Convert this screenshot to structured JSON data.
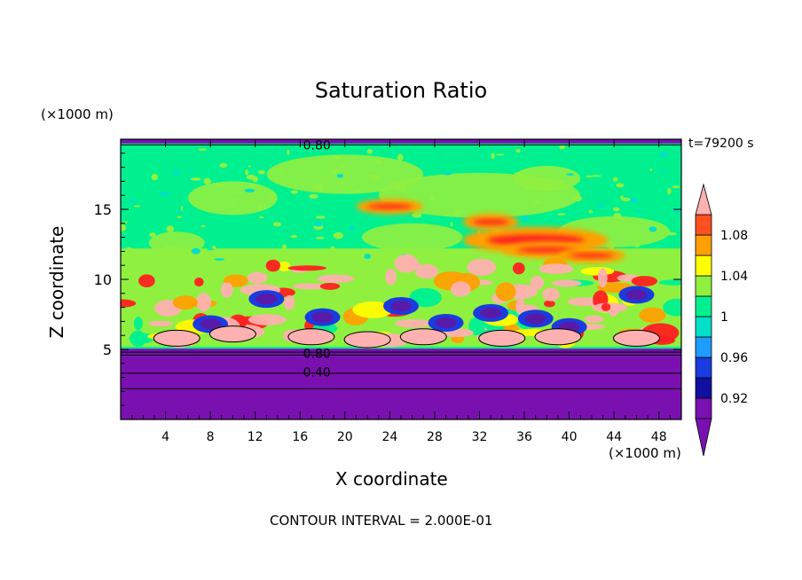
{
  "chart_data": {
    "type": "heatmap",
    "title": "Saturation Ratio",
    "xlabel": "X coordinate",
    "ylabel": "Z coordinate",
    "x_units": "(×1000 m)",
    "z_units": "(×1000 m)",
    "time_label": "t=79200 s",
    "xlim": [
      0,
      50
    ],
    "ylim": [
      0,
      20
    ],
    "x_ticks": [
      4,
      8,
      12,
      16,
      20,
      24,
      28,
      32,
      36,
      40,
      44,
      48
    ],
    "y_ticks": [
      5,
      10,
      15
    ],
    "footer": "CONTOUR INTERVAL = 2.000E-01",
    "contour_labels": [
      {
        "text": "0.80",
        "x": 17.5,
        "z": 19.6
      },
      {
        "text": "0.80",
        "x": 17.5,
        "z": 4.7
      },
      {
        "text": "0.40",
        "x": 17.5,
        "z": 3.4
      }
    ],
    "colorbar": {
      "levels": [
        0.9,
        0.92,
        0.94,
        0.96,
        0.98,
        1.0,
        1.02,
        1.04,
        1.06,
        1.08,
        1.1
      ],
      "colors": [
        "#5a1aa8",
        "#1010a0",
        "#1a3be0",
        "#1f9cff",
        "#00e0c8",
        "#00f090",
        "#90f040",
        "#ffff00",
        "#ffa000",
        "#ff5020",
        "#ff2020",
        "#ffb0b0"
      ],
      "tick_labels": [
        "0.92",
        "0.96",
        "1",
        "1.04",
        "1.08"
      ],
      "tick_values": [
        0.92,
        0.96,
        1.0,
        1.04,
        1.08
      ],
      "under_color": "#7a10b0",
      "over_color": "#ffb0b0"
    },
    "regions": {
      "lower_layer_color": "#7a10b0",
      "upper_background_color": "#00f090",
      "mid_layer_color": "#90f040",
      "supersaturated_color": "#ffb0b0"
    }
  }
}
